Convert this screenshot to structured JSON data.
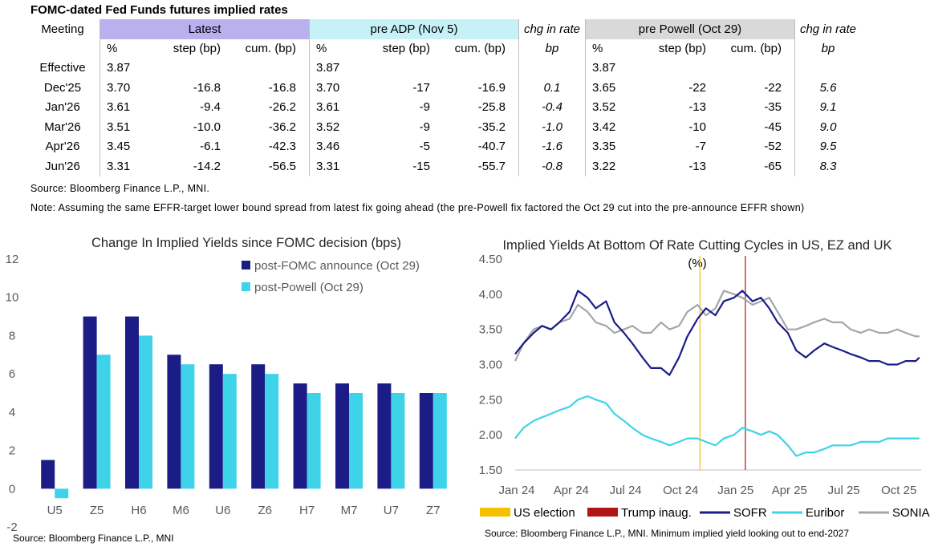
{
  "table": {
    "title": "FOMC-dated Fed Funds futures implied rates",
    "headers": {
      "meeting": "Meeting",
      "latest": "Latest",
      "pre_adp": "pre ADP (Nov 5)",
      "chg1": "chg in rate",
      "pre_powell": "pre Powell (Oct 29)",
      "chg2": "chg in rate"
    },
    "subheaders": [
      "%",
      "step (bp)",
      "cum. (bp)",
      "%",
      "step (bp)",
      "cum. (bp)",
      "bp",
      "%",
      "step (bp)",
      "cum. (bp)",
      "bp"
    ],
    "rows": [
      [
        "Effective",
        "3.87",
        "",
        "",
        "3.87",
        "",
        "",
        "",
        "3.87",
        "",
        "",
        ""
      ],
      [
        "Dec'25",
        "3.70",
        "-16.8",
        "-16.8",
        "3.70",
        "-17",
        "-16.9",
        "0.1",
        "3.65",
        "-22",
        "-22",
        "5.6"
      ],
      [
        "Jan'26",
        "3.61",
        "-9.4",
        "-26.2",
        "3.61",
        "-9",
        "-25.8",
        "-0.4",
        "3.52",
        "-13",
        "-35",
        "9.1"
      ],
      [
        "Mar'26",
        "3.51",
        "-10.0",
        "-36.2",
        "3.52",
        "-9",
        "-35.2",
        "-1.0",
        "3.42",
        "-10",
        "-45",
        "9.0"
      ],
      [
        "Apr'26",
        "3.45",
        "-6.1",
        "-42.3",
        "3.46",
        "-5",
        "-40.7",
        "-1.6",
        "3.35",
        "-7",
        "-52",
        "9.5"
      ],
      [
        "Jun'26",
        "3.31",
        "-14.2",
        "-56.5",
        "3.31",
        "-15",
        "-55.7",
        "-0.8",
        "3.22",
        "-13",
        "-65",
        "8.3"
      ]
    ],
    "source": "Source: Bloomberg Finance L.P., MNI.",
    "note": "Note: Assuming the same  EFFR-target lower bound spread from latest fix going ahead (the pre-Powell fix factored the Oct 29 cut into the pre-announce EFFR shown)"
  },
  "chart_data": [
    {
      "type": "bar",
      "title": "Change In Implied Yields since FOMC decision (bps)",
      "categories": [
        "U5",
        "Z5",
        "H6",
        "M6",
        "U6",
        "Z6",
        "H7",
        "M7",
        "U7",
        "Z7"
      ],
      "series": [
        {
          "name": "post-FOMC announce (Oct 29)",
          "color": "#1b1c86",
          "values": [
            1.5,
            9.0,
            9.0,
            7.0,
            6.5,
            6.5,
            5.5,
            5.5,
            5.5,
            5.0
          ]
        },
        {
          "name": "post-Powell (Oct 29)",
          "color": "#3fd3ea",
          "values": [
            -0.5,
            7.0,
            8.0,
            6.5,
            6.0,
            6.0,
            5.0,
            5.0,
            5.0,
            5.0
          ]
        }
      ],
      "ylim": [
        -2,
        12
      ],
      "yticks": [
        "12",
        "10",
        "8",
        "6",
        "4",
        "2",
        "0",
        "-2"
      ],
      "grid": false,
      "legend": "top-right",
      "source": "Source: Bloomberg Finance L.P., MNI"
    },
    {
      "type": "line",
      "title": "Implied Yields At Bottom Of Rate Cutting Cycles in US, EZ and UK",
      "ylabel": "(%)",
      "ylim": [
        1.5,
        4.5
      ],
      "yticks": [
        "4.50",
        "4.00",
        "3.50",
        "3.00",
        "2.50",
        "2.00",
        "1.50"
      ],
      "xlim": [
        "2024-01-01",
        "2025-11-10"
      ],
      "xticks": [
        "Jan 24",
        "Apr 24",
        "Jul 24",
        "Oct 24",
        "Jan 25",
        "Apr 25",
        "Jul 25",
        "Oct 25"
      ],
      "series": [
        {
          "name": "SOFR",
          "color": "#1b1c86",
          "x": [
            "2024-01-01",
            "2024-01-15",
            "2024-02-01",
            "2024-02-15",
            "2024-03-01",
            "2024-03-15",
            "2024-04-01",
            "2024-04-15",
            "2024-05-01",
            "2024-05-15",
            "2024-06-01",
            "2024-06-15",
            "2024-07-01",
            "2024-07-15",
            "2024-08-01",
            "2024-08-15",
            "2024-09-01",
            "2024-09-15",
            "2024-10-01",
            "2024-10-15",
            "2024-11-01",
            "2024-11-15",
            "2024-12-01",
            "2024-12-15",
            "2025-01-01",
            "2025-01-15",
            "2025-02-01",
            "2025-02-15",
            "2025-03-01",
            "2025-03-15",
            "2025-04-01",
            "2025-04-15",
            "2025-05-01",
            "2025-05-15",
            "2025-06-01",
            "2025-06-15",
            "2025-07-01",
            "2025-07-15",
            "2025-08-01",
            "2025-08-15",
            "2025-09-01",
            "2025-09-15",
            "2025-10-01",
            "2025-10-15",
            "2025-11-01",
            "2025-11-07"
          ],
          "y": [
            3.15,
            3.3,
            3.45,
            3.55,
            3.5,
            3.6,
            3.75,
            4.05,
            3.95,
            3.8,
            3.9,
            3.6,
            3.45,
            3.3,
            3.1,
            2.95,
            2.95,
            2.85,
            3.1,
            3.4,
            3.65,
            3.8,
            3.7,
            3.9,
            3.95,
            4.05,
            3.9,
            3.95,
            3.8,
            3.6,
            3.45,
            3.2,
            3.1,
            3.2,
            3.3,
            3.25,
            3.2,
            3.15,
            3.1,
            3.05,
            3.05,
            3.0,
            3.0,
            3.05,
            3.05,
            3.1
          ]
        },
        {
          "name": "Euribor",
          "color": "#3fd3ea",
          "x": [
            "2024-01-01",
            "2024-01-15",
            "2024-02-01",
            "2024-02-15",
            "2024-03-01",
            "2024-03-15",
            "2024-04-01",
            "2024-04-15",
            "2024-05-01",
            "2024-05-15",
            "2024-06-01",
            "2024-06-15",
            "2024-07-01",
            "2024-07-15",
            "2024-08-01",
            "2024-08-15",
            "2024-09-01",
            "2024-09-15",
            "2024-10-01",
            "2024-10-15",
            "2024-11-01",
            "2024-11-15",
            "2024-12-01",
            "2024-12-15",
            "2025-01-01",
            "2025-01-15",
            "2025-02-01",
            "2025-02-15",
            "2025-03-01",
            "2025-03-15",
            "2025-04-01",
            "2025-04-15",
            "2025-05-01",
            "2025-05-15",
            "2025-06-01",
            "2025-06-15",
            "2025-07-01",
            "2025-07-15",
            "2025-08-01",
            "2025-08-15",
            "2025-09-01",
            "2025-09-15",
            "2025-10-01",
            "2025-10-15",
            "2025-11-01",
            "2025-11-07"
          ],
          "y": [
            1.95,
            2.1,
            2.2,
            2.25,
            2.3,
            2.35,
            2.4,
            2.5,
            2.55,
            2.5,
            2.45,
            2.3,
            2.2,
            2.1,
            2.0,
            1.95,
            1.9,
            1.85,
            1.9,
            1.95,
            1.95,
            1.9,
            1.85,
            1.95,
            2.0,
            2.1,
            2.05,
            2.0,
            2.05,
            2.0,
            1.85,
            1.7,
            1.75,
            1.75,
            1.8,
            1.85,
            1.85,
            1.85,
            1.9,
            1.9,
            1.9,
            1.95,
            1.95,
            1.95,
            1.95,
            1.95
          ]
        },
        {
          "name": "SONIA",
          "color": "#a6a6a6",
          "x": [
            "2024-01-01",
            "2024-01-15",
            "2024-02-01",
            "2024-02-15",
            "2024-03-01",
            "2024-03-15",
            "2024-04-01",
            "2024-04-15",
            "2024-05-01",
            "2024-05-15",
            "2024-06-01",
            "2024-06-15",
            "2024-07-01",
            "2024-07-15",
            "2024-08-01",
            "2024-08-15",
            "2024-09-01",
            "2024-09-15",
            "2024-10-01",
            "2024-10-15",
            "2024-11-01",
            "2024-11-15",
            "2024-12-01",
            "2024-12-15",
            "2025-01-01",
            "2025-01-15",
            "2025-02-01",
            "2025-02-15",
            "2025-03-01",
            "2025-03-15",
            "2025-04-01",
            "2025-04-15",
            "2025-05-01",
            "2025-05-15",
            "2025-06-01",
            "2025-06-15",
            "2025-07-01",
            "2025-07-15",
            "2025-08-01",
            "2025-08-15",
            "2025-09-01",
            "2025-09-15",
            "2025-10-01",
            "2025-10-15",
            "2025-11-01",
            "2025-11-07"
          ],
          "y": [
            3.05,
            3.3,
            3.5,
            3.55,
            3.5,
            3.6,
            3.65,
            3.85,
            3.75,
            3.6,
            3.55,
            3.45,
            3.5,
            3.55,
            3.45,
            3.45,
            3.6,
            3.5,
            3.55,
            3.75,
            3.85,
            3.7,
            3.8,
            4.05,
            4.0,
            3.95,
            3.85,
            3.9,
            3.95,
            3.75,
            3.5,
            3.5,
            3.55,
            3.6,
            3.65,
            3.6,
            3.6,
            3.5,
            3.45,
            3.5,
            3.45,
            3.45,
            3.5,
            3.45,
            3.4,
            3.4
          ]
        }
      ],
      "vlines": [
        {
          "name": "US election",
          "color": "#f5c000",
          "x": "2024-11-05"
        },
        {
          "name": "Trump inaug.",
          "color": "#b01414",
          "x": "2025-01-20"
        }
      ],
      "legend": "bottom",
      "source": "Source: Bloomberg Finance L.P., MNI. Minimum implied yield looking out to end-2027"
    }
  ]
}
